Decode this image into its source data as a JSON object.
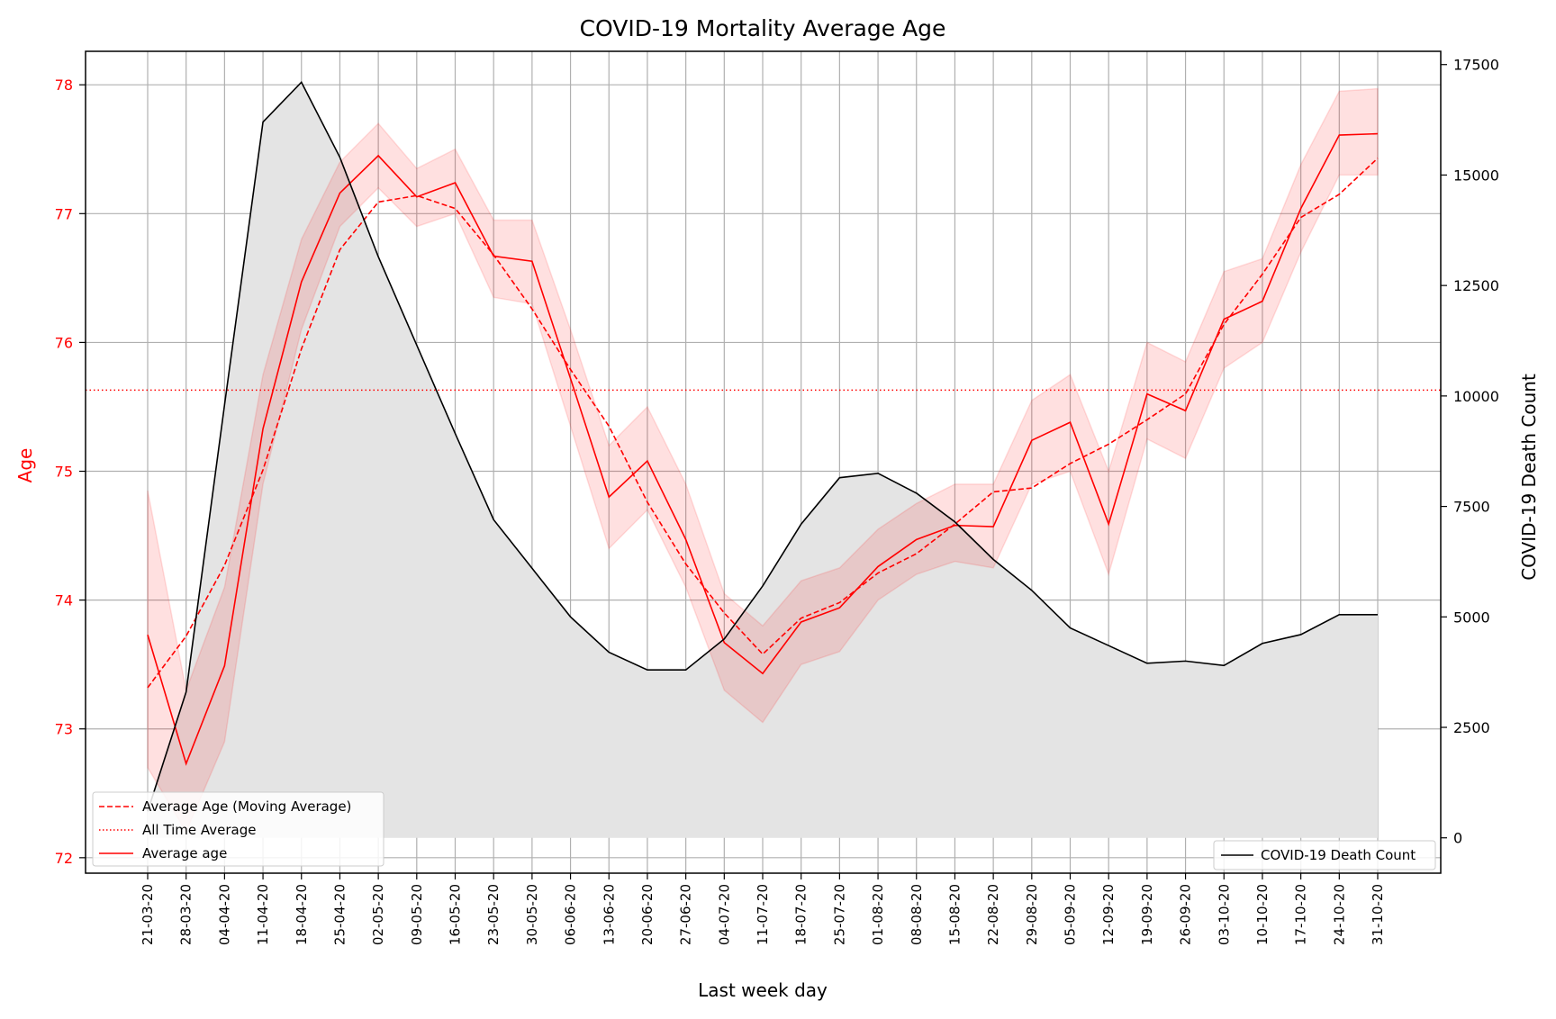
{
  "chart_data": {
    "type": "line",
    "title": "COVID-19 Mortality Average Age",
    "xlabel": "Last week day",
    "ylabel_left": "Age",
    "ylabel_right": "COVID-19 Death Count",
    "x": [
      "21-03-20",
      "28-03-20",
      "04-04-20",
      "11-04-20",
      "18-04-20",
      "25-04-20",
      "02-05-20",
      "09-05-20",
      "16-05-20",
      "23-05-20",
      "30-05-20",
      "06-06-20",
      "13-06-20",
      "20-06-20",
      "27-06-20",
      "04-07-20",
      "11-07-20",
      "18-07-20",
      "25-07-20",
      "01-08-20",
      "08-08-20",
      "15-08-20",
      "22-08-20",
      "29-08-20",
      "05-09-20",
      "12-09-20",
      "19-09-20",
      "26-09-20",
      "03-10-20",
      "10-10-20",
      "17-10-20",
      "24-10-20",
      "31-10-20"
    ],
    "ylim_left": [
      72,
      78
    ],
    "yticks_left": [
      72,
      73,
      74,
      75,
      76,
      77,
      78
    ],
    "ylim_right": [
      -800,
      17800
    ],
    "yticks_right": [
      0,
      2500,
      5000,
      7500,
      10000,
      12500,
      15000,
      17500
    ],
    "grid": true,
    "all_time_average": 75.63,
    "series": [
      {
        "name": "Average age",
        "axis": "left",
        "color": "#ff0000",
        "style": "solid",
        "values": [
          73.73,
          72.73,
          73.49,
          75.33,
          76.47,
          77.16,
          77.45,
          77.13,
          77.24,
          76.67,
          76.63,
          75.72,
          74.8,
          75.08,
          74.47,
          73.67,
          73.43,
          73.83,
          73.94,
          74.26,
          74.47,
          74.58,
          74.57,
          75.24,
          75.38,
          74.59,
          75.6,
          75.47,
          76.18,
          76.32,
          77.04,
          77.61,
          77.62
        ],
        "band_low": [
          72.7,
          72.2,
          72.9,
          74.9,
          76.1,
          76.9,
          77.2,
          76.9,
          77.0,
          76.35,
          76.3,
          75.35,
          74.4,
          74.7,
          74.1,
          73.3,
          73.05,
          73.5,
          73.6,
          74.0,
          74.2,
          74.3,
          74.25,
          74.9,
          75.0,
          74.2,
          75.25,
          75.1,
          75.8,
          76.0,
          76.7,
          77.3,
          77.3
        ],
        "band_high": [
          74.85,
          73.3,
          74.1,
          75.75,
          76.8,
          77.4,
          77.7,
          77.35,
          77.5,
          76.95,
          76.95,
          76.1,
          75.2,
          75.5,
          74.9,
          74.05,
          73.8,
          74.15,
          74.25,
          74.55,
          74.75,
          74.9,
          74.9,
          75.55,
          75.75,
          75.0,
          76.0,
          75.85,
          76.55,
          76.65,
          77.38,
          77.95,
          77.97
        ]
      },
      {
        "name": "Average Age (Moving Average)",
        "axis": "left",
        "color": "#ff0000",
        "style": "dashed",
        "values": [
          73.32,
          73.72,
          74.27,
          75.01,
          75.95,
          76.72,
          77.09,
          77.14,
          77.04,
          76.68,
          76.26,
          75.79,
          75.35,
          74.76,
          74.28,
          73.9,
          73.58,
          73.86,
          73.98,
          74.21,
          74.36,
          74.59,
          74.84,
          74.87,
          75.06,
          75.21,
          75.4,
          75.6,
          76.14,
          76.53,
          76.97,
          77.15,
          77.43
        ]
      },
      {
        "name": "All Time Average",
        "axis": "left",
        "color": "#ff0000",
        "style": "dotted"
      },
      {
        "name": "COVID-19 Death Count",
        "axis": "right",
        "color": "#000000",
        "style": "solid",
        "fill": "#e4e4e4",
        "values": [
          600,
          3300,
          9800,
          16200,
          17100,
          15400,
          13150,
          11150,
          9150,
          7200,
          6100,
          5000,
          4200,
          3800,
          3800,
          4500,
          5700,
          7100,
          8150,
          8250,
          7800,
          7150,
          6300,
          5600,
          4750,
          4350,
          3950,
          4000,
          3900,
          4400,
          4600,
          5050,
          5050
        ]
      }
    ],
    "legend_left": {
      "placement": "lower-left",
      "entries": [
        "Average Age (Moving Average)",
        "All Time Average",
        "Average age"
      ]
    },
    "legend_right": {
      "placement": "lower-right",
      "entries": [
        "COVID-19 Death Count"
      ]
    }
  }
}
